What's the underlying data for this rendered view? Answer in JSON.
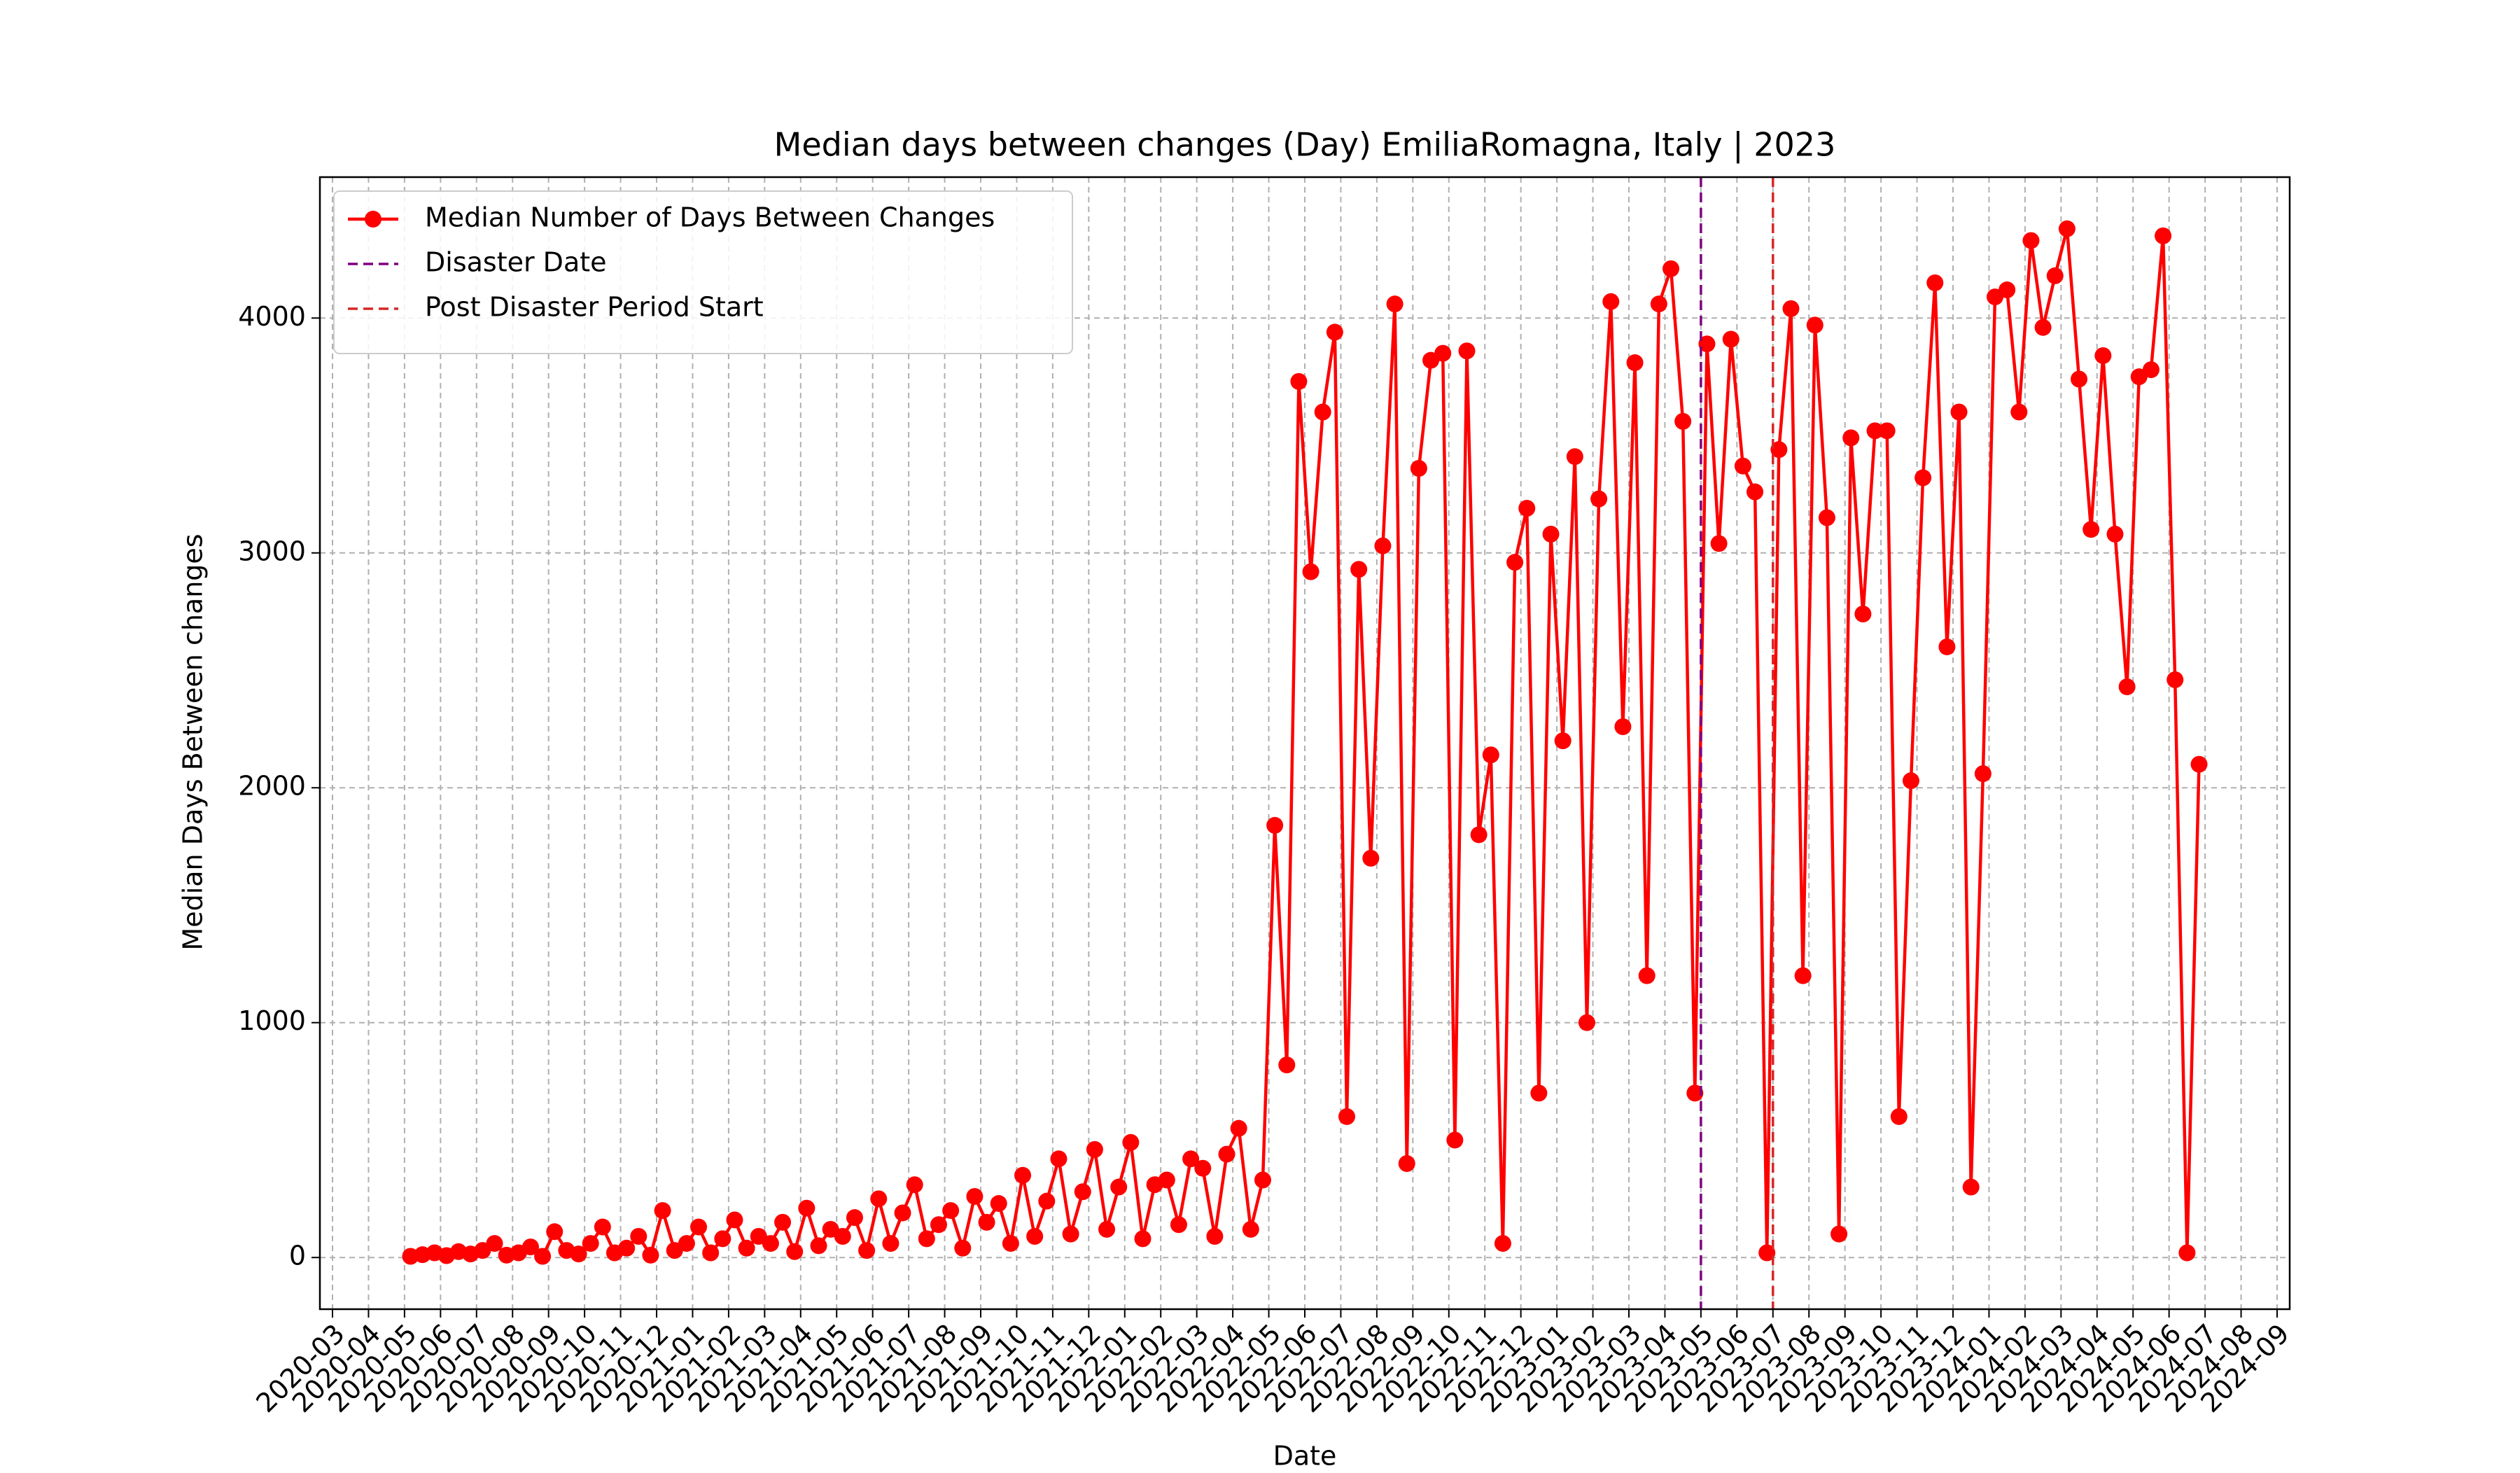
{
  "chart_data": {
    "type": "line",
    "title": "Median days between changes (Day) EmiliaRomagna, Italy | 2023",
    "xlabel": "Date",
    "ylabel": "Median Days Between changes",
    "x": [
      "2020-05",
      "2020-05",
      "2020-05",
      "2020-06",
      "2020-06",
      "2020-06",
      "2020-07",
      "2020-07",
      "2020-07",
      "2020-08",
      "2020-08",
      "2020-08",
      "2020-09",
      "2020-09",
      "2020-09",
      "2020-10",
      "2020-10",
      "2020-10",
      "2020-11",
      "2020-11",
      "2020-11",
      "2020-12",
      "2020-12",
      "2020-12",
      "2021-01",
      "2021-01",
      "2021-01",
      "2021-02",
      "2021-02",
      "2021-02",
      "2021-03",
      "2021-03",
      "2021-03",
      "2021-04",
      "2021-04",
      "2021-04",
      "2021-05",
      "2021-05",
      "2021-05",
      "2021-06",
      "2021-06",
      "2021-06",
      "2021-07",
      "2021-07",
      "2021-07",
      "2021-08",
      "2021-08",
      "2021-08",
      "2021-09",
      "2021-09",
      "2021-09",
      "2021-10",
      "2021-10",
      "2021-10",
      "2021-11",
      "2021-11",
      "2021-11",
      "2021-12",
      "2021-12",
      "2021-12",
      "2022-01",
      "2022-01",
      "2022-01",
      "2022-02",
      "2022-02",
      "2022-02",
      "2022-03",
      "2022-03",
      "2022-03",
      "2022-04",
      "2022-04",
      "2022-04",
      "2022-05",
      "2022-05",
      "2022-05",
      "2022-06",
      "2022-06",
      "2022-06",
      "2022-07",
      "2022-07",
      "2022-07",
      "2022-08",
      "2022-08",
      "2022-08",
      "2022-09",
      "2022-09",
      "2022-09",
      "2022-10",
      "2022-10",
      "2022-10",
      "2022-11",
      "2022-11",
      "2022-11",
      "2022-12",
      "2022-12",
      "2022-12",
      "2023-01",
      "2023-01",
      "2023-01",
      "2023-02",
      "2023-02",
      "2023-02",
      "2023-03",
      "2023-03",
      "2023-03",
      "2023-04",
      "2023-04",
      "2023-04",
      "2023-05",
      "2023-05",
      "2023-05",
      "2023-06",
      "2023-06",
      "2023-06",
      "2023-07",
      "2023-07",
      "2023-07",
      "2023-08",
      "2023-08",
      "2023-08",
      "2023-09",
      "2023-09",
      "2023-09",
      "2023-10",
      "2023-10",
      "2023-10",
      "2023-11",
      "2023-11",
      "2023-11",
      "2023-12",
      "2023-12",
      "2023-12",
      "2024-01",
      "2024-01",
      "2024-01",
      "2024-02",
      "2024-02",
      "2024-02",
      "2024-03",
      "2024-03",
      "2024-03",
      "2024-04",
      "2024-04",
      "2024-04",
      "2024-05",
      "2024-05",
      "2024-05",
      "2024-06",
      "2024-06",
      "2024-06"
    ],
    "series": [
      {
        "name": "Median Number of Days Between Changes",
        "color": "#ff0000",
        "values": [
          5,
          12,
          20,
          8,
          25,
          15,
          30,
          60,
          10,
          20,
          45,
          5,
          110,
          30,
          15,
          60,
          130,
          20,
          40,
          90,
          10,
          200,
          30,
          60,
          130,
          20,
          80,
          160,
          40,
          90,
          60,
          150,
          25,
          210,
          50,
          120,
          90,
          170,
          30,
          250,
          60,
          190,
          310,
          80,
          140,
          200,
          40,
          260,
          150,
          230,
          60,
          350,
          90,
          240,
          420,
          100,
          280,
          460,
          120,
          300,
          490,
          80,
          310,
          330,
          140,
          420,
          380,
          90,
          440,
          550,
          120,
          330,
          1840,
          820,
          3730,
          2920,
          3600,
          3940,
          600,
          2930,
          1700,
          3030,
          4060,
          400,
          3360,
          3820,
          3850,
          500,
          3860,
          1800,
          2140,
          60,
          2960,
          3190,
          700,
          3080,
          2200,
          3410,
          1000,
          3230,
          4070,
          2260,
          3810,
          1200,
          4060,
          4210,
          3560,
          700,
          3890,
          3040,
          3910,
          3370,
          3260,
          20,
          3440,
          4040,
          1200,
          3970,
          3150,
          100,
          3490,
          2740,
          3520,
          3520,
          600,
          2030,
          3320,
          4150,
          2600,
          3600,
          300,
          2060,
          4090,
          4120,
          3600,
          4330,
          3960,
          4180,
          4380,
          3740,
          3100,
          3840,
          3080,
          2430,
          3750,
          3780,
          4350,
          2460,
          20,
          2100
        ]
      }
    ],
    "vlines": [
      {
        "name": "Disaster Date",
        "x": "2023-05",
        "color": "purple"
      },
      {
        "name": "Post Disaster Period Start",
        "x": "2023-07",
        "color": "#d62728"
      }
    ],
    "xlim": [
      "2020-03",
      "2024-09"
    ],
    "xticks": [
      "2020-03",
      "2020-04",
      "2020-05",
      "2020-06",
      "2020-07",
      "2020-08",
      "2020-09",
      "2020-10",
      "2020-11",
      "2020-12",
      "2021-01",
      "2021-02",
      "2021-03",
      "2021-04",
      "2021-05",
      "2021-06",
      "2021-07",
      "2021-08",
      "2021-09",
      "2021-10",
      "2021-11",
      "2021-12",
      "2022-01",
      "2022-02",
      "2022-03",
      "2022-04",
      "2022-05",
      "2022-06",
      "2022-07",
      "2022-08",
      "2022-09",
      "2022-10",
      "2022-11",
      "2022-12",
      "2023-01",
      "2023-02",
      "2023-03",
      "2023-04",
      "2023-05",
      "2023-06",
      "2023-07",
      "2023-08",
      "2023-09",
      "2023-10",
      "2023-11",
      "2023-12",
      "2024-01",
      "2024-02",
      "2024-03",
      "2024-04",
      "2024-05",
      "2024-06",
      "2024-07",
      "2024-08",
      "2024-09"
    ],
    "ylim": [
      -220,
      4600
    ],
    "yticks": [
      0,
      1000,
      2000,
      3000,
      4000
    ],
    "grid": true,
    "legend": "upper left"
  }
}
